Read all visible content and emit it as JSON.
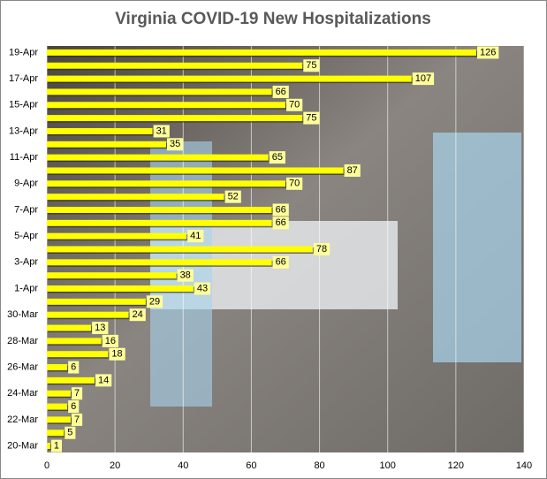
{
  "chart_data": {
    "type": "bar",
    "orientation": "horizontal",
    "title": "Virginia COVID-19 New Hospitalizations",
    "categories": [
      "20-Mar",
      null,
      "22-Mar",
      null,
      "24-Mar",
      null,
      "26-Mar",
      null,
      "28-Mar",
      null,
      "30-Mar",
      null,
      "1-Apr",
      null,
      "3-Apr",
      null,
      "5-Apr",
      null,
      "7-Apr",
      null,
      "9-Apr",
      null,
      "11-Apr",
      null,
      "13-Apr",
      null,
      "15-Apr",
      null,
      "17-Apr",
      null,
      "19-Apr"
    ],
    "values": [
      1,
      5,
      7,
      6,
      7,
      14,
      6,
      18,
      16,
      13,
      24,
      29,
      43,
      38,
      66,
      78,
      41,
      66,
      66,
      52,
      70,
      87,
      65,
      35,
      31,
      75,
      70,
      66,
      107,
      75,
      126
    ],
    "color": "#ffff00",
    "xlim": [
      0,
      140
    ],
    "xticks": [
      0,
      20,
      40,
      60,
      80,
      100,
      120,
      140
    ],
    "grid": true
  }
}
